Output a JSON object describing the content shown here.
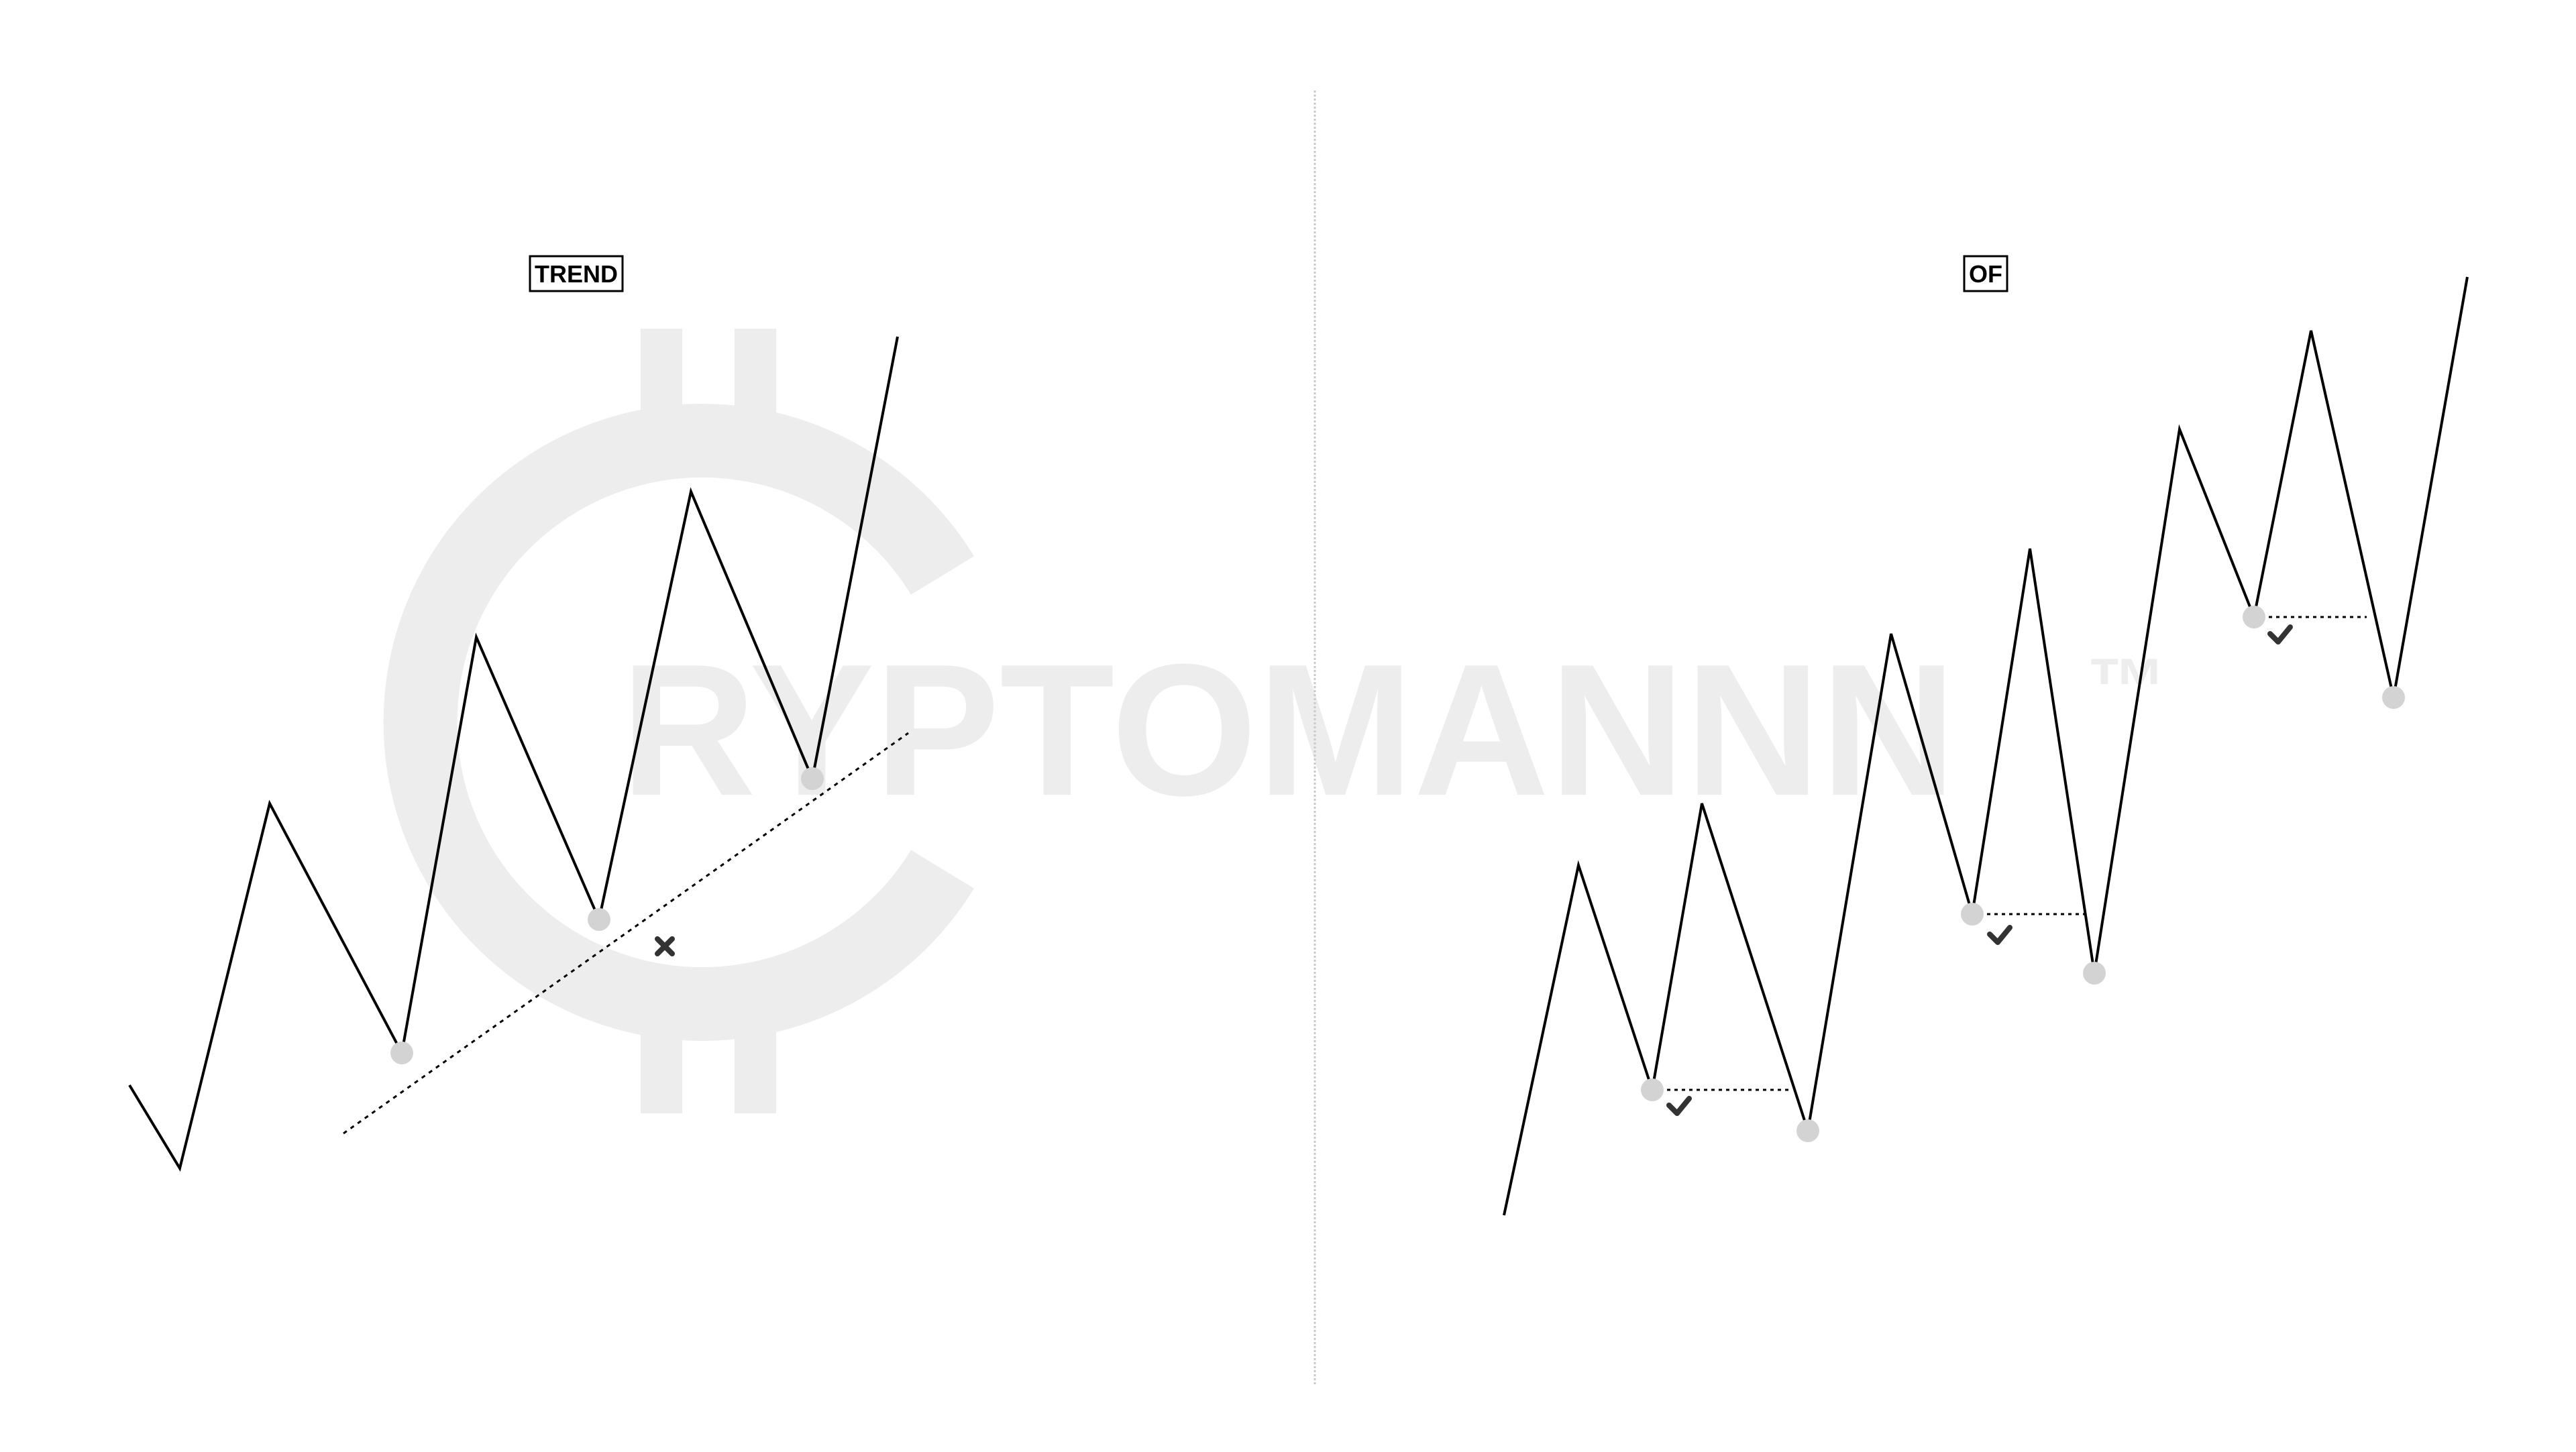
{
  "watermark": {
    "text": "RYPTOMANNN",
    "tm": "™",
    "color": "#ededed"
  },
  "panels": [
    {
      "id": "trend",
      "label": "TREND"
    },
    {
      "id": "of",
      "label": "OF"
    }
  ],
  "colors": {
    "line": "#000000",
    "pivot": "#d3d3d3",
    "mark": "#333333",
    "divider": "#c8c8c8"
  },
  "icons": {
    "fail_mark": "x-icon",
    "pass_mark": "check-icon"
  }
}
